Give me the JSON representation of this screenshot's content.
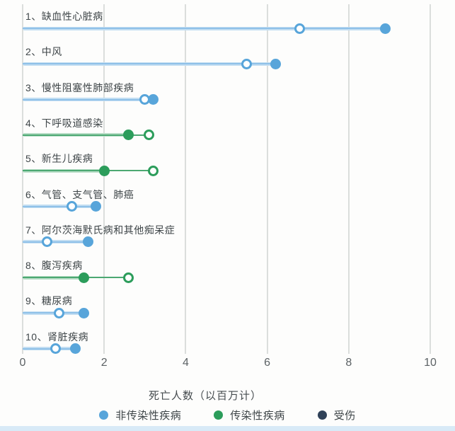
{
  "chart_data": {
    "type": "dumbbell",
    "title": "",
    "xlabel": "死亡人数（以百万计）",
    "xlim": [
      0,
      10
    ],
    "x_ticks": [
      0,
      2,
      4,
      6,
      8,
      10
    ],
    "grid": "vertical-on",
    "legend_position": "bottom-center",
    "marker_note": "filled-dot and open-dot per row; thick band runs from 0 to filled-dot value, thin line spans to the farther dot",
    "legend": [
      {
        "label": "非传染性疾病",
        "color": "#58a5da"
      },
      {
        "label": "传染性疾病",
        "color": "#2c9d5b"
      },
      {
        "label": "受伤",
        "color": "#2f4158"
      }
    ],
    "rows": [
      {
        "label": "1、缺血性心脏病",
        "category": "非传染性疾病",
        "open_value": 6.8,
        "filled_value": 8.9
      },
      {
        "label": "2、中风",
        "category": "非传染性疾病",
        "open_value": 5.5,
        "filled_value": 6.2
      },
      {
        "label": "3、慢性阻塞性肺部疾病",
        "category": "非传染性疾病",
        "open_value": 3.0,
        "filled_value": 3.2
      },
      {
        "label": "4、下呼吸道感染",
        "category": "传染性疾病",
        "open_value": 3.1,
        "filled_value": 2.6
      },
      {
        "label": "5、新生儿疾病",
        "category": "传染性疾病",
        "open_value": 3.2,
        "filled_value": 2.0
      },
      {
        "label": "6、气管、支气管、肺癌",
        "category": "非传染性疾病",
        "open_value": 1.2,
        "filled_value": 1.8
      },
      {
        "label": "7、阿尔茨海默氏病和其他痴呆症",
        "category": "非传染性疾病",
        "open_value": 0.6,
        "filled_value": 1.6
      },
      {
        "label": "8、腹泻疾病",
        "category": "传染性疾病",
        "open_value": 2.6,
        "filled_value": 1.5
      },
      {
        "label": "9、糖尿病",
        "category": "非传染性疾病",
        "open_value": 0.9,
        "filled_value": 1.5
      },
      {
        "label": "10、肾脏疾病",
        "category": "非传染性疾病",
        "open_value": 0.8,
        "filled_value": 1.3
      }
    ],
    "palette": {
      "非传染性疾病": {
        "dot": "#58a5da",
        "band": "#c3def2",
        "core": "#8fc1e8"
      },
      "传染性疾病": {
        "dot": "#2c9d5b",
        "band": "#b7ddc6",
        "core": "#4ca872"
      },
      "受伤": {
        "dot": "#2f4158",
        "band": "#c9d2dc",
        "core": "#6b7a8e"
      },
      "gridline": "#dbdedc",
      "tick_text": "#5c6265",
      "label_text": "#3e4548",
      "bottom_strip": "#d8eaf7"
    }
  }
}
